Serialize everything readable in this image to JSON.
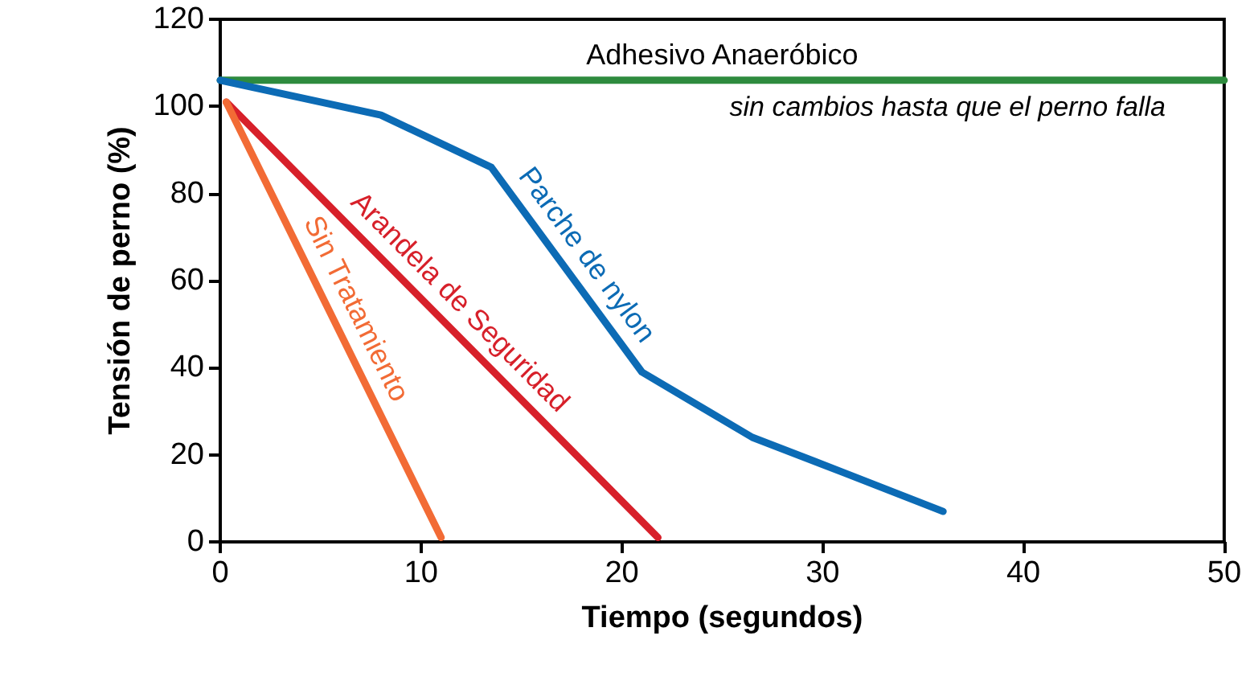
{
  "chart_data": {
    "type": "line",
    "xlabel": "Tiempo (segundos)",
    "ylabel": "Tensión de perno (%)",
    "xlim": [
      0,
      50
    ],
    "xticks": [
      0,
      10,
      20,
      30,
      40,
      50
    ],
    "ylim": [
      0,
      120
    ],
    "yticks": [
      0,
      20,
      40,
      60,
      80,
      100,
      120
    ],
    "grid": false,
    "legend": false,
    "marker": "none",
    "line_style": "solid",
    "series": [
      {
        "name": "Adhesivo Anaeróbico",
        "color": "#2e8b3e",
        "x": [
          0,
          50
        ],
        "values": [
          106,
          106
        ]
      },
      {
        "name": "Parche de nylon",
        "color": "#0c6bb5",
        "x": [
          0,
          8,
          13.5,
          21,
          26.5,
          31,
          36
        ],
        "values": [
          106,
          98,
          86,
          39,
          24,
          16,
          7
        ]
      },
      {
        "name": "Arandela de Seguridad",
        "color": "#d7202a",
        "x": [
          0.3,
          21.8
        ],
        "values": [
          101,
          1
        ]
      },
      {
        "name": "Sin Tratamiento",
        "color": "#f26b35",
        "x": [
          0.3,
          11
        ],
        "values": [
          101,
          1
        ]
      }
    ],
    "annotations": [
      "sin cambios hasta que el perno falla"
    ]
  }
}
